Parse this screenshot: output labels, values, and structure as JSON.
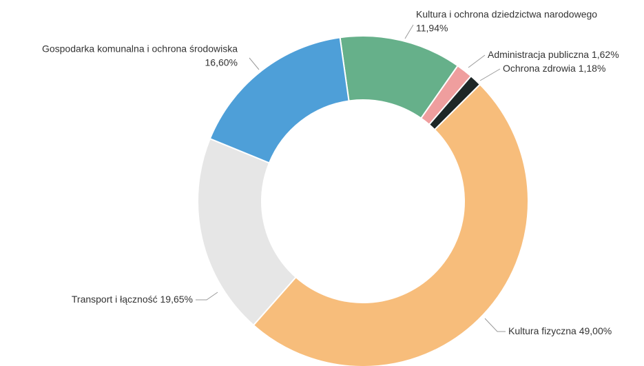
{
  "chart_data": {
    "type": "donut",
    "categories": [
      "Kultura i ochrona dziedzictwa narodowego",
      "Administracja publiczna",
      "Ochrona zdrowia",
      "Kultura fizyczna",
      "Transport i łączność",
      "Gospodarka komunalna i ochrona środowiska"
    ],
    "values": [
      11.94,
      1.62,
      1.18,
      49.0,
      19.65,
      16.6
    ],
    "value_labels": [
      "11,94%",
      "1,62%",
      "1,18%",
      "49,00%",
      "19,65%",
      "16,60%"
    ],
    "colors": [
      "#66b08a",
      "#ef9e9e",
      "#1e2727",
      "#f7bd7b",
      "#e6e6e6",
      "#4e9fd8"
    ]
  }
}
